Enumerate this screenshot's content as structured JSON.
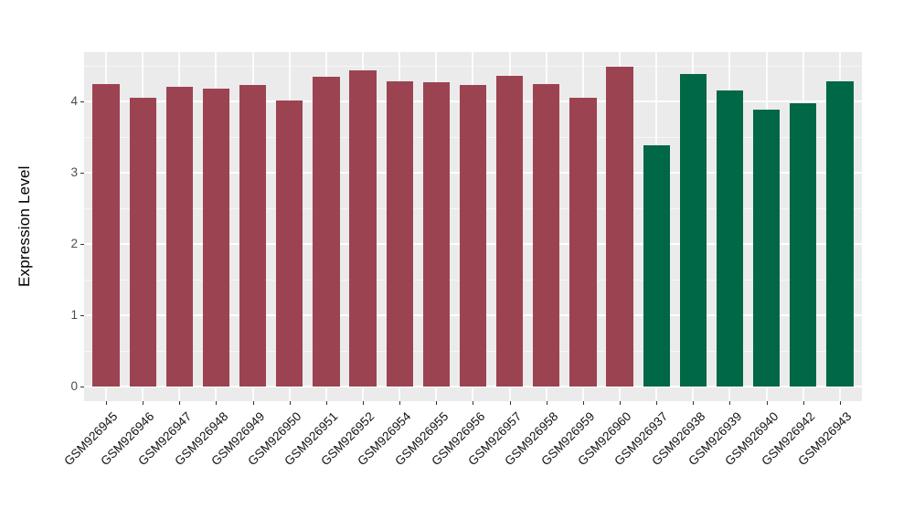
{
  "chart_data": {
    "type": "bar",
    "title": "",
    "xlabel": "",
    "ylabel": "Expression Level",
    "ylim": [
      0,
      4.72
    ],
    "yticks": [
      "0",
      "1",
      "2",
      "3",
      "4"
    ],
    "legend": "none",
    "panel_bg": "#EBEBEB",
    "grid_color": "#FFFFFF",
    "tick_color": "#4D4D4D",
    "group_colors": {
      "red": "#9C4351",
      "green": "#006747"
    },
    "bars": [
      {
        "label": "GSM926945",
        "value": 4.25,
        "group": "red"
      },
      {
        "label": "GSM926946",
        "value": 4.05,
        "group": "red"
      },
      {
        "label": "GSM926947",
        "value": 4.2,
        "group": "red"
      },
      {
        "label": "GSM926948",
        "value": 4.18,
        "group": "red"
      },
      {
        "label": "GSM926949",
        "value": 4.23,
        "group": "red"
      },
      {
        "label": "GSM926950",
        "value": 4.01,
        "group": "red"
      },
      {
        "label": "GSM926951",
        "value": 4.35,
        "group": "red"
      },
      {
        "label": "GSM926952",
        "value": 4.43,
        "group": "red"
      },
      {
        "label": "GSM926954",
        "value": 4.28,
        "group": "red"
      },
      {
        "label": "GSM926955",
        "value": 4.27,
        "group": "red"
      },
      {
        "label": "GSM926956",
        "value": 4.23,
        "group": "red"
      },
      {
        "label": "GSM926957",
        "value": 4.36,
        "group": "red"
      },
      {
        "label": "GSM926958",
        "value": 4.24,
        "group": "red"
      },
      {
        "label": "GSM926959",
        "value": 4.05,
        "group": "red"
      },
      {
        "label": "GSM926960",
        "value": 4.49,
        "group": "red"
      },
      {
        "label": "GSM926937",
        "value": 3.39,
        "group": "green"
      },
      {
        "label": "GSM926938",
        "value": 4.38,
        "group": "green"
      },
      {
        "label": "GSM926939",
        "value": 4.16,
        "group": "green"
      },
      {
        "label": "GSM926940",
        "value": 3.89,
        "group": "green"
      },
      {
        "label": "GSM926942",
        "value": 3.98,
        "group": "green"
      },
      {
        "label": "GSM926943",
        "value": 4.28,
        "group": "green"
      }
    ]
  }
}
